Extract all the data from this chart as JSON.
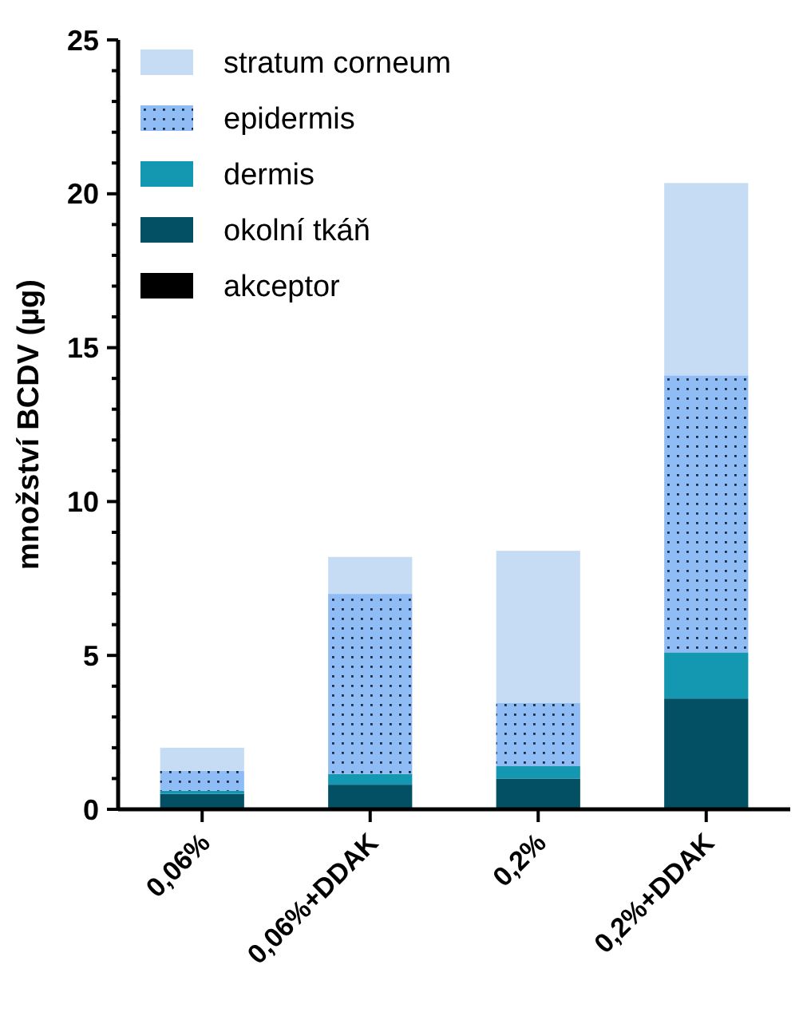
{
  "chart_data": {
    "type": "bar",
    "stacked": true,
    "ylabel": "množství BCDV (µg)",
    "categories": [
      "0,06%",
      "0,06%+DDAK",
      "0,2%",
      "0,2%+DDAK"
    ],
    "series": [
      {
        "name": "akceptor",
        "color": "#000000",
        "values": [
          0,
          0,
          0,
          0
        ]
      },
      {
        "name": "okolní tkáň",
        "color": "#034f63",
        "values": [
          0.5,
          0.8,
          1.0,
          3.6
        ]
      },
      {
        "name": "dermis",
        "color": "#1497b0",
        "values": [
          0.1,
          0.35,
          0.4,
          1.5
        ]
      },
      {
        "name": "epidermis",
        "color": "#8fbcf5",
        "values": [
          0.65,
          5.85,
          2.05,
          9.0
        ]
      },
      {
        "name": "stratum corneum",
        "color": "#c6dcf5",
        "values": [
          0.75,
          1.2,
          4.95,
          6.25
        ]
      }
    ],
    "ylim": [
      0,
      25
    ],
    "yticks": [
      0,
      {
        "value": 1,
        "label": null
      },
      {
        "value": 2,
        "label": null
      },
      {
        "value": 3,
        "label": null
      },
      {
        "value": 4,
        "label": null
      },
      5,
      {
        "value": 6,
        "label": null
      },
      {
        "value": 7,
        "label": null
      },
      {
        "value": 8,
        "label": null
      },
      {
        "value": 9,
        "label": null
      },
      10,
      {
        "value": 11,
        "label": null
      },
      {
        "value": 12,
        "label": null
      },
      {
        "value": 13,
        "label": null
      },
      {
        "value": 14,
        "label": null
      },
      15,
      {
        "value": 16,
        "label": null
      },
      {
        "value": 17,
        "label": null
      },
      {
        "value": 18,
        "label": null
      },
      {
        "value": 19,
        "label": null
      },
      20,
      {
        "value": 21,
        "label": null
      },
      {
        "value": 22,
        "label": null
      },
      {
        "value": 23,
        "label": null
      },
      {
        "value": 24,
        "label": null
      },
      25
    ],
    "legend": "top left"
  }
}
